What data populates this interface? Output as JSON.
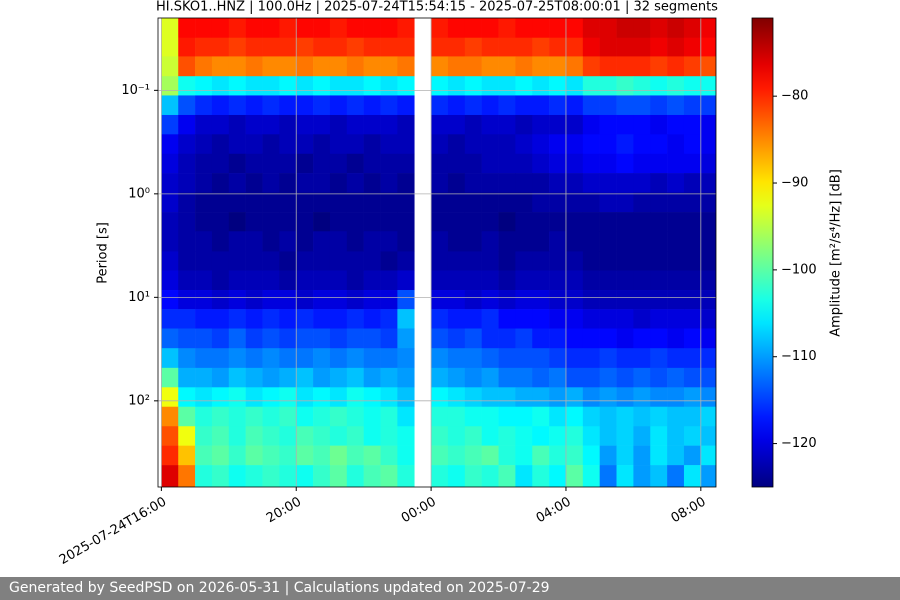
{
  "chart_data": {
    "type": "heatmap",
    "title": "HI.SKO1..HNZ | 100.0Hz | 2025-07-24T15:54:15 - 2025-07-25T08:00:01 | 32 segments",
    "ylabel": "Period [s]",
    "colorbar_label": "Amplitude [m²/s⁴/Hz] [dB]",
    "colormap": "jet",
    "grid": true,
    "log_y": true,
    "x": [
      "2025-07-24T16:00",
      "2025-07-24T16:30",
      "2025-07-24T17:00",
      "2025-07-24T17:30",
      "2025-07-24T18:00",
      "2025-07-24T18:30",
      "2025-07-24T19:00",
      "2025-07-24T19:30",
      "2025-07-24T20:00",
      "2025-07-24T20:30",
      "2025-07-24T21:00",
      "2025-07-24T21:30",
      "2025-07-24T22:00",
      "2025-07-24T22:30",
      "2025-07-24T23:00",
      "2025-07-25T00:00",
      "2025-07-25T00:30",
      "2025-07-25T01:00",
      "2025-07-25T01:30",
      "2025-07-25T02:00",
      "2025-07-25T02:30",
      "2025-07-25T03:00",
      "2025-07-25T03:30",
      "2025-07-25T04:00",
      "2025-07-25T04:30",
      "2025-07-25T05:00",
      "2025-07-25T05:30",
      "2025-07-25T06:00",
      "2025-07-25T06:30",
      "2025-07-25T07:00",
      "2025-07-25T07:30",
      "2025-07-25T08:00"
    ],
    "period_bins": [
      0.02,
      0.031,
      0.047,
      0.073,
      0.112,
      0.173,
      0.266,
      0.41,
      0.63,
      0.97,
      1.5,
      2.3,
      3.6,
      5.5,
      8.5,
      13,
      20,
      31,
      48,
      74,
      114,
      176,
      271,
      418,
      680
    ],
    "z": [
      [
        -93,
        -78,
        -78,
        -78,
        -79,
        -78,
        -78,
        -79,
        -78,
        -78,
        -79,
        -78,
        -78,
        -78,
        -79,
        -79,
        -78,
        -78,
        -78,
        -79,
        -78,
        -78,
        -78,
        -78,
        -76,
        -76,
        -75,
        -75,
        -76,
        -75,
        -76,
        -77
      ],
      [
        -93,
        -79,
        -80,
        -80,
        -81,
        -80,
        -80,
        -80,
        -81,
        -80,
        -80,
        -81,
        -80,
        -80,
        -80,
        -80,
        -80,
        -81,
        -80,
        -80,
        -80,
        -81,
        -80,
        -80,
        -77,
        -76,
        -76,
        -76,
        -77,
        -76,
        -77,
        -78
      ],
      [
        -94,
        -82,
        -84,
        -85,
        -85,
        -84,
        -85,
        -85,
        -84,
        -85,
        -85,
        -84,
        -85,
        -85,
        -84,
        -85,
        -84,
        -84,
        -85,
        -85,
        -84,
        -85,
        -85,
        -84,
        -81,
        -80,
        -80,
        -80,
        -81,
        -80,
        -81,
        -82
      ],
      [
        -96,
        -104,
        -105,
        -106,
        -105,
        -106,
        -106,
        -105,
        -106,
        -105,
        -106,
        -106,
        -105,
        -106,
        -105,
        -105,
        -106,
        -105,
        -106,
        -106,
        -105,
        -106,
        -105,
        -106,
        -103,
        -103,
        -102,
        -103,
        -104,
        -103,
        -104,
        -104
      ],
      [
        -108,
        -114,
        -116,
        -117,
        -116,
        -117,
        -116,
        -117,
        -117,
        -116,
        -117,
        -116,
        -117,
        -116,
        -117,
        -116,
        -117,
        -116,
        -117,
        -116,
        -117,
        -117,
        -116,
        -117,
        -115,
        -115,
        -114,
        -114,
        -115,
        -114,
        -115,
        -115
      ],
      [
        -115,
        -119,
        -121,
        -121,
        -122,
        -121,
        -121,
        -122,
        -121,
        -121,
        -122,
        -121,
        -121,
        -121,
        -122,
        -121,
        -121,
        -122,
        -121,
        -121,
        -122,
        -121,
        -121,
        -121,
        -119,
        -118,
        -118,
        -118,
        -119,
        -118,
        -118,
        -119
      ],
      [
        -119,
        -121,
        -122,
        -123,
        -122,
        -122,
        -123,
        -122,
        -122,
        -123,
        -122,
        -122,
        -123,
        -122,
        -122,
        -122,
        -123,
        -122,
        -122,
        -122,
        -121,
        -120,
        -119,
        -119,
        -118,
        -118,
        -117,
        -118,
        -118,
        -119,
        -118,
        -119
      ],
      [
        -120,
        -122,
        -123,
        -123,
        -124,
        -123,
        -123,
        -123,
        -124,
        -123,
        -123,
        -124,
        -123,
        -123,
        -123,
        -123,
        -123,
        -123,
        -122,
        -122,
        -122,
        -121,
        -120,
        -120,
        -119,
        -119,
        -118,
        -119,
        -119,
        -119,
        -119,
        -120
      ],
      [
        -121,
        -122,
        -123,
        -124,
        -123,
        -124,
        -123,
        -124,
        -123,
        -123,
        -124,
        -123,
        -124,
        -123,
        -124,
        -123,
        -124,
        -123,
        -123,
        -123,
        -123,
        -123,
        -122,
        -122,
        -121,
        -121,
        -121,
        -121,
        -122,
        -121,
        -122,
        -122
      ],
      [
        -121,
        -123,
        -124,
        -124,
        -124,
        -124,
        -124,
        -124,
        -124,
        -124,
        -124,
        -124,
        -124,
        -124,
        -124,
        -124,
        -124,
        -124,
        -124,
        -124,
        -124,
        -123,
        -123,
        -123,
        -123,
        -122,
        -122,
        -123,
        -123,
        -123,
        -123,
        -123
      ],
      [
        -122,
        -123,
        -124,
        -124,
        -125,
        -124,
        -124,
        -124,
        -124,
        -125,
        -124,
        -124,
        -124,
        -124,
        -124,
        -124,
        -124,
        -124,
        -124,
        -125,
        -124,
        -124,
        -124,
        -124,
        -124,
        -124,
        -124,
        -124,
        -124,
        -124,
        -124,
        -124
      ],
      [
        -122,
        -123,
        -123,
        -124,
        -123,
        -123,
        -124,
        -123,
        -124,
        -123,
        -123,
        -124,
        -123,
        -123,
        -124,
        -123,
        -124,
        -124,
        -123,
        -124,
        -124,
        -124,
        -123,
        -124,
        -124,
        -124,
        -124,
        -124,
        -124,
        -124,
        -124,
        -124
      ],
      [
        -121,
        -123,
        -123,
        -123,
        -123,
        -123,
        -123,
        -124,
        -123,
        -123,
        -123,
        -123,
        -123,
        -124,
        -123,
        -123,
        -123,
        -123,
        -123,
        -124,
        -123,
        -123,
        -123,
        -123,
        -124,
        -124,
        -124,
        -124,
        -124,
        -124,
        -124,
        -124
      ],
      [
        -120,
        -122,
        -122,
        -123,
        -122,
        -122,
        -122,
        -123,
        -122,
        -122,
        -122,
        -123,
        -122,
        -122,
        -121,
        -122,
        -122,
        -122,
        -122,
        -123,
        -122,
        -122,
        -122,
        -122,
        -123,
        -123,
        -123,
        -123,
        -123,
        -123,
        -123,
        -123
      ],
      [
        -118,
        -120,
        -120,
        -121,
        -120,
        -121,
        -120,
        -120,
        -121,
        -120,
        -120,
        -121,
        -120,
        -120,
        -114,
        -120,
        -120,
        -121,
        -120,
        -121,
        -120,
        -120,
        -121,
        -121,
        -122,
        -122,
        -122,
        -122,
        -122,
        -122,
        -122,
        -122
      ],
      [
        -116,
        -116,
        -117,
        -117,
        -116,
        -117,
        -116,
        -117,
        -116,
        -117,
        -117,
        -116,
        -117,
        -116,
        -108,
        -116,
        -117,
        -117,
        -116,
        -118,
        -118,
        -118,
        -119,
        -119,
        -120,
        -120,
        -120,
        -121,
        -120,
        -120,
        -120,
        -121
      ],
      [
        -113,
        -114,
        -114,
        -115,
        -113,
        -115,
        -114,
        -115,
        -114,
        -114,
        -115,
        -114,
        -114,
        -115,
        -110,
        -114,
        -115,
        -114,
        -116,
        -116,
        -115,
        -117,
        -117,
        -118,
        -118,
        -118,
        -119,
        -118,
        -118,
        -119,
        -118,
        -119
      ],
      [
        -108,
        -111,
        -112,
        -112,
        -111,
        -112,
        -111,
        -112,
        -112,
        -111,
        -112,
        -111,
        -112,
        -112,
        -111,
        -111,
        -112,
        -112,
        -113,
        -114,
        -114,
        -114,
        -115,
        -116,
        -116,
        -115,
        -116,
        -116,
        -115,
        -116,
        -116,
        -116
      ],
      [
        -100,
        -109,
        -109,
        -110,
        -108,
        -109,
        -110,
        -109,
        -108,
        -110,
        -109,
        -108,
        -110,
        -109,
        -110,
        -109,
        -110,
        -111,
        -110,
        -112,
        -112,
        -113,
        -112,
        -114,
        -114,
        -113,
        -114,
        -113,
        -114,
        -113,
        -114,
        -114
      ],
      [
        -92,
        -105,
        -106,
        -105,
        -104,
        -106,
        -105,
        -104,
        -106,
        -105,
        -106,
        -104,
        -105,
        -106,
        -108,
        -105,
        -106,
        -107,
        -108,
        -108,
        -109,
        -109,
        -110,
        -109,
        -111,
        -110,
        -111,
        -110,
        -111,
        -111,
        -110,
        -111
      ],
      [
        -85,
        -100,
        -103,
        -102,
        -103,
        -102,
        -103,
        -102,
        -104,
        -103,
        -102,
        -103,
        -104,
        -103,
        -106,
        -103,
        -103,
        -104,
        -104,
        -105,
        -105,
        -104,
        -106,
        -105,
        -107,
        -108,
        -107,
        -108,
        -107,
        -108,
        -108,
        -107
      ],
      [
        -82,
        -92,
        -102,
        -101,
        -103,
        -101,
        -102,
        -103,
        -101,
        -102,
        -103,
        -102,
        -104,
        -103,
        -104,
        -102,
        -103,
        -102,
        -104,
        -103,
        -104,
        -105,
        -104,
        -103,
        -106,
        -108,
        -107,
        -109,
        -106,
        -108,
        -107,
        -108
      ],
      [
        -80,
        -88,
        -101,
        -100,
        -102,
        -100,
        -101,
        -102,
        -100,
        -101,
        -99,
        -101,
        -100,
        -102,
        -104,
        -101,
        -102,
        -101,
        -100,
        -103,
        -104,
        -101,
        -103,
        -102,
        -105,
        -110,
        -107,
        -110,
        -106,
        -108,
        -110,
        -106
      ],
      [
        -76,
        -84,
        -103,
        -102,
        -104,
        -103,
        -102,
        -103,
        -104,
        -102,
        -100,
        -103,
        -101,
        -100,
        -103,
        -103,
        -104,
        -102,
        -103,
        -101,
        -106,
        -103,
        -105,
        -100,
        -104,
        -112,
        -106,
        -110,
        -108,
        -112,
        -106,
        -110
      ]
    ],
    "xlim": [
      "2025-07-24T15:54",
      "2025-07-25T08:27"
    ],
    "xticks": [
      {
        "value": "2025-07-24T16:00",
        "label": "2025-07-24T16:00"
      },
      {
        "value": "2025-07-24T20:00",
        "label": "20:00"
      },
      {
        "value": "2025-07-25T00:00",
        "label": "00:00"
      },
      {
        "value": "2025-07-25T04:00",
        "label": "04:00"
      },
      {
        "value": "2025-07-25T08:00",
        "label": "08:00"
      }
    ],
    "ylim": [
      680,
      0.02
    ],
    "yticks": [
      {
        "value": 0.1,
        "label": "10⁻¹"
      },
      {
        "value": 1,
        "label": "10⁰"
      },
      {
        "value": 10,
        "label": "10¹"
      },
      {
        "value": 100,
        "label": "10²"
      }
    ],
    "clim": [
      -125,
      -71
    ],
    "cticks": [
      {
        "value": -80,
        "label": "−80"
      },
      {
        "value": -90,
        "label": "−90"
      },
      {
        "value": -100,
        "label": "−100"
      },
      {
        "value": -110,
        "label": "−110"
      },
      {
        "value": -120,
        "label": "−120"
      }
    ]
  },
  "footer": {
    "text": "Generated by SeedPSD on 2026-05-31 | Calculations updated on 2025-07-29"
  }
}
